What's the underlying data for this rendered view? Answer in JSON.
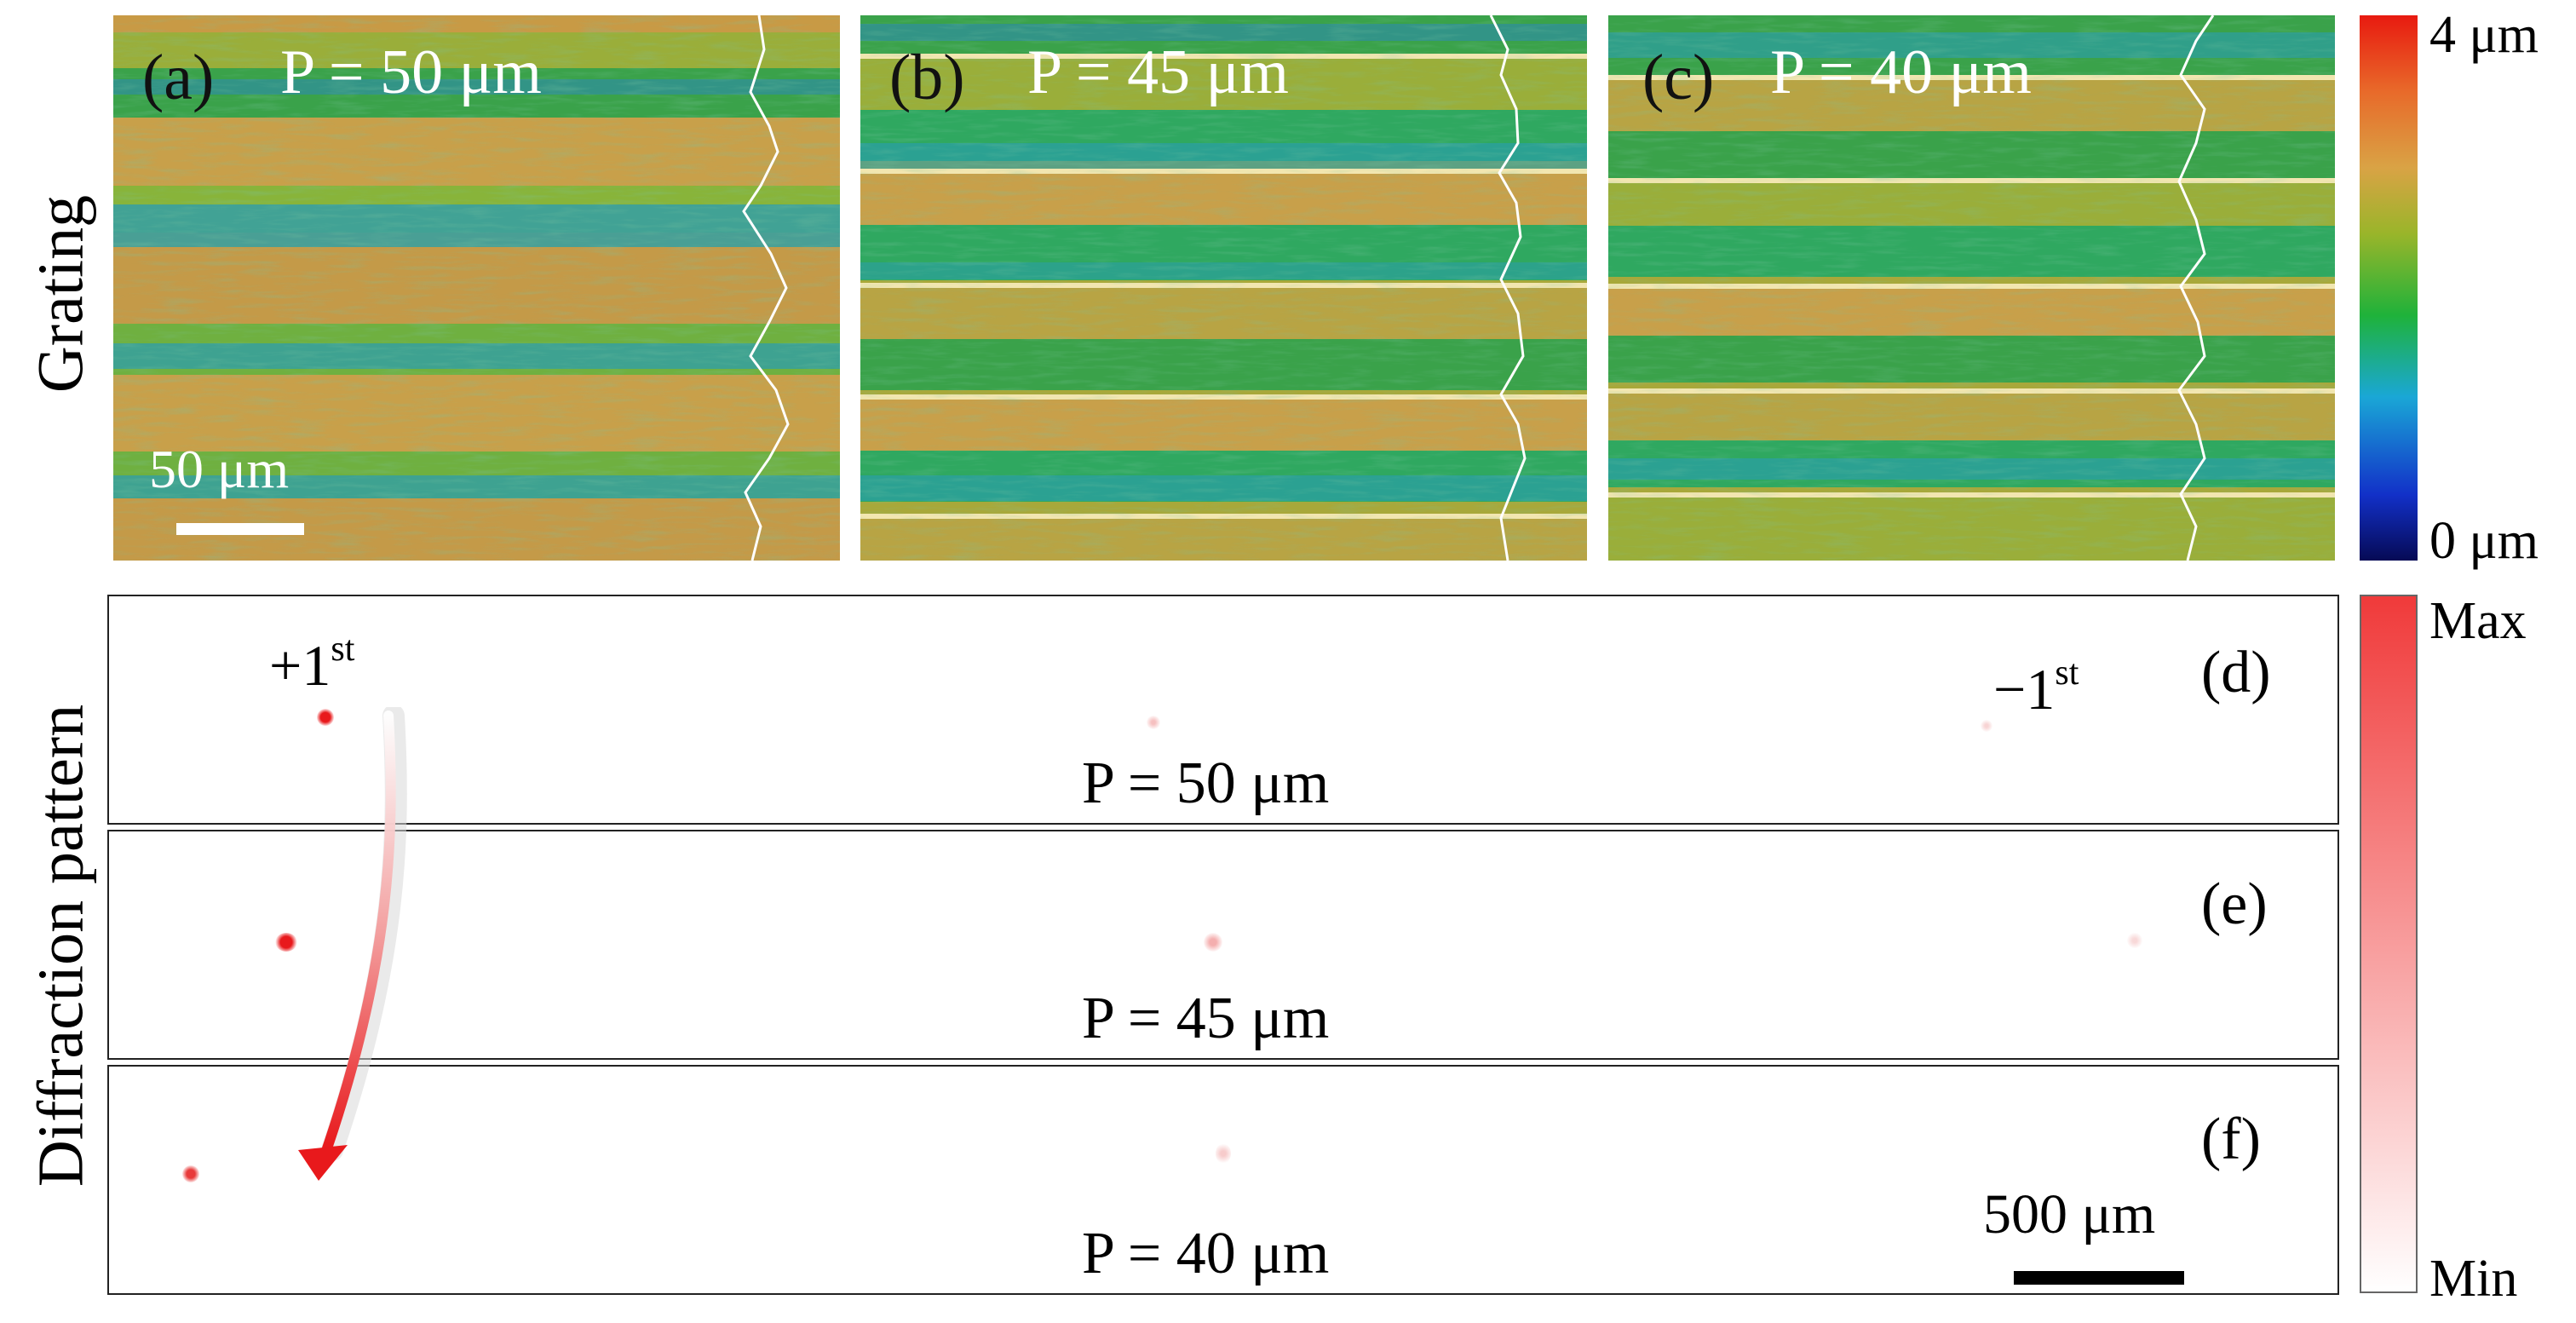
{
  "figure": {
    "row_labels": {
      "top": "Grating",
      "bottom": "Diffraction pattern"
    },
    "grating_panels": [
      {
        "label": "(a)",
        "period": "P = 50 μm",
        "scale_bar": "50 μm"
      },
      {
        "label": "(b)",
        "period": "P = 45 μm"
      },
      {
        "label": "(c)",
        "period": "P = 40 μm"
      }
    ],
    "height_colorbar": {
      "max_label": "4 μm",
      "min_label": "0 μm"
    },
    "diffraction_panels": [
      {
        "label": "(d)",
        "period": "P = 50 μm",
        "plus_order": "+1",
        "minus_order": "−1",
        "order_suffix": "st"
      },
      {
        "label": "(e)",
        "period": "P = 45 μm"
      },
      {
        "label": "(f)",
        "period": "P = 40 μm",
        "scale_bar": "500 μm"
      }
    ],
    "intensity_colorbar": {
      "max_label": "Max",
      "min_label": "Min"
    },
    "colors": {
      "accent_red": "#e8191c",
      "height_low": "#0a1a8c",
      "height_high": "#e81a10"
    }
  }
}
